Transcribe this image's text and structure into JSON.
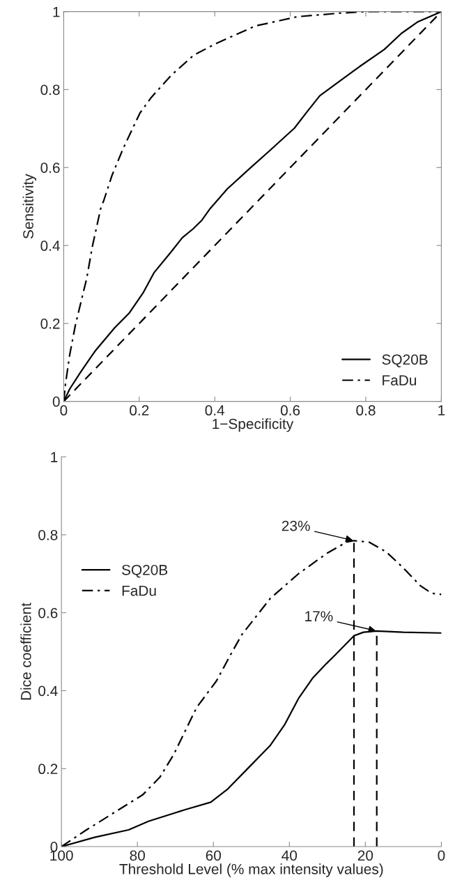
{
  "chart_data": [
    {
      "type": "line",
      "xlabel": "1−Specificity",
      "ylabel": "Sensitivity",
      "xlim": [
        0,
        1
      ],
      "ylim": [
        0,
        1
      ],
      "xticks": [
        0,
        0.2,
        0.4,
        0.6,
        0.8,
        1
      ],
      "yticks": [
        0,
        0.2,
        0.4,
        0.6,
        0.8,
        1
      ],
      "grid": false,
      "legend": "lower right",
      "marker": "none",
      "series": [
        {
          "name": "SQ20B",
          "color": "#000000",
          "line_style": "solid",
          "x": [
            0,
            0.016,
            0.046,
            0.083,
            0.135,
            0.173,
            0.21,
            0.239,
            0.284,
            0.314,
            0.343,
            0.366,
            0.388,
            0.433,
            0.492,
            0.544,
            0.611,
            0.641,
            0.678,
            0.73,
            0.782,
            0.849,
            0.894,
            0.938,
            1
          ],
          "values": [
            0,
            0.032,
            0.077,
            0.129,
            0.189,
            0.226,
            0.278,
            0.33,
            0.383,
            0.42,
            0.443,
            0.465,
            0.495,
            0.545,
            0.597,
            0.642,
            0.701,
            0.739,
            0.784,
            0.821,
            0.858,
            0.903,
            0.944,
            0.974,
            1
          ]
        },
        {
          "name": "FaDu",
          "color": "#000000",
          "line_style": "dashdot",
          "x": [
            0,
            0.005,
            0.016,
            0.031,
            0.046,
            0.061,
            0.076,
            0.098,
            0.106,
            0.128,
            0.158,
            0.202,
            0.232,
            0.284,
            0.344,
            0.403,
            0.507,
            0.619,
            0.73,
            0.8,
            1
          ],
          "values": [
            0,
            0.047,
            0.12,
            0.196,
            0.256,
            0.316,
            0.398,
            0.495,
            0.515,
            0.58,
            0.65,
            0.74,
            0.78,
            0.836,
            0.888,
            0.918,
            0.963,
            0.987,
            0.996,
            1,
            1
          ]
        },
        {
          "color": "#000000",
          "line_style": "dashed",
          "x": [
            0,
            1
          ],
          "values": [
            0,
            1
          ]
        }
      ]
    },
    {
      "type": "line",
      "xlabel": "Threshold Level (% max intensity values)",
      "ylabel": "Dice coefficient",
      "xlim": [
        100,
        0
      ],
      "ylim": [
        0,
        1
      ],
      "xticks": [
        100,
        80,
        60,
        40,
        20,
        0
      ],
      "yticks": [
        0,
        0.2,
        0.4,
        0.6,
        0.8,
        1
      ],
      "grid": false,
      "legend": "center left",
      "marker": "none",
      "annotations": [
        {
          "text": "23%",
          "x": 23,
          "y": 0.785
        },
        {
          "text": "17%",
          "x": 17,
          "y": 0.553
        }
      ],
      "series": [
        {
          "name": "SQ20B",
          "color": "#000000",
          "line_style": "solid",
          "x": [
            100,
            91.2,
            82.3,
            77.1,
            67.4,
            60.7,
            56.2,
            50.3,
            45,
            41.3,
            37.6,
            33.9,
            30.2,
            27.9,
            23,
            20.5,
            17,
            10,
            0
          ],
          "values": [
            0,
            0.024,
            0.043,
            0.065,
            0.095,
            0.114,
            0.148,
            0.207,
            0.26,
            0.312,
            0.38,
            0.432,
            0.47,
            0.492,
            0.541,
            0.55,
            0.553,
            0.55,
            0.548
          ]
        },
        {
          "name": "FaDu",
          "color": "#000000",
          "line_style": "dashdot",
          "x": [
            100,
            93.4,
            86,
            78.6,
            74.1,
            70.4,
            67.4,
            64.4,
            59.2,
            55.5,
            52.5,
            45,
            37.6,
            30.2,
            25,
            23,
            19,
            14.5,
            10,
            5.6,
            2.6,
            0
          ],
          "values": [
            0,
            0.043,
            0.088,
            0.133,
            0.178,
            0.237,
            0.297,
            0.357,
            0.425,
            0.492,
            0.544,
            0.637,
            0.7,
            0.752,
            0.781,
            0.785,
            0.781,
            0.756,
            0.715,
            0.67,
            0.65,
            0.647
          ]
        },
        {
          "color": "#000000",
          "line_style": "dashed",
          "x": [
            23,
            23
          ],
          "values": [
            0,
            0.785
          ]
        },
        {
          "color": "#000000",
          "line_style": "dashed",
          "x": [
            17,
            17
          ],
          "values": [
            0,
            0.553
          ]
        }
      ]
    }
  ]
}
